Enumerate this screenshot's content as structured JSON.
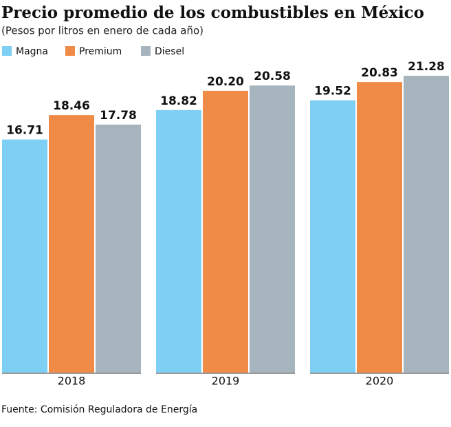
{
  "chart_data": {
    "type": "bar",
    "title": "Precio promedio de los combustibles en México",
    "subtitle": "(Pesos por litros en enero de cada año)",
    "categories": [
      "2018",
      "2019",
      "2020"
    ],
    "series": [
      {
        "name": "Magna",
        "color": "#7ecff4",
        "values": [
          16.71,
          18.82,
          19.52
        ]
      },
      {
        "name": "Premium",
        "color": "#f08a47",
        "values": [
          18.46,
          20.2,
          20.83
        ]
      },
      {
        "name": "Diesel",
        "color": "#a5b4bd",
        "values": [
          17.78,
          20.58,
          21.28
        ]
      }
    ],
    "value_labels": [
      [
        "16.71",
        "18.82",
        "19.52"
      ],
      [
        "18.46",
        "20.20",
        "20.83"
      ],
      [
        "17.78",
        "20.58",
        "21.28"
      ]
    ],
    "source": "Fuente: Comisión Reguladora de Energía"
  }
}
